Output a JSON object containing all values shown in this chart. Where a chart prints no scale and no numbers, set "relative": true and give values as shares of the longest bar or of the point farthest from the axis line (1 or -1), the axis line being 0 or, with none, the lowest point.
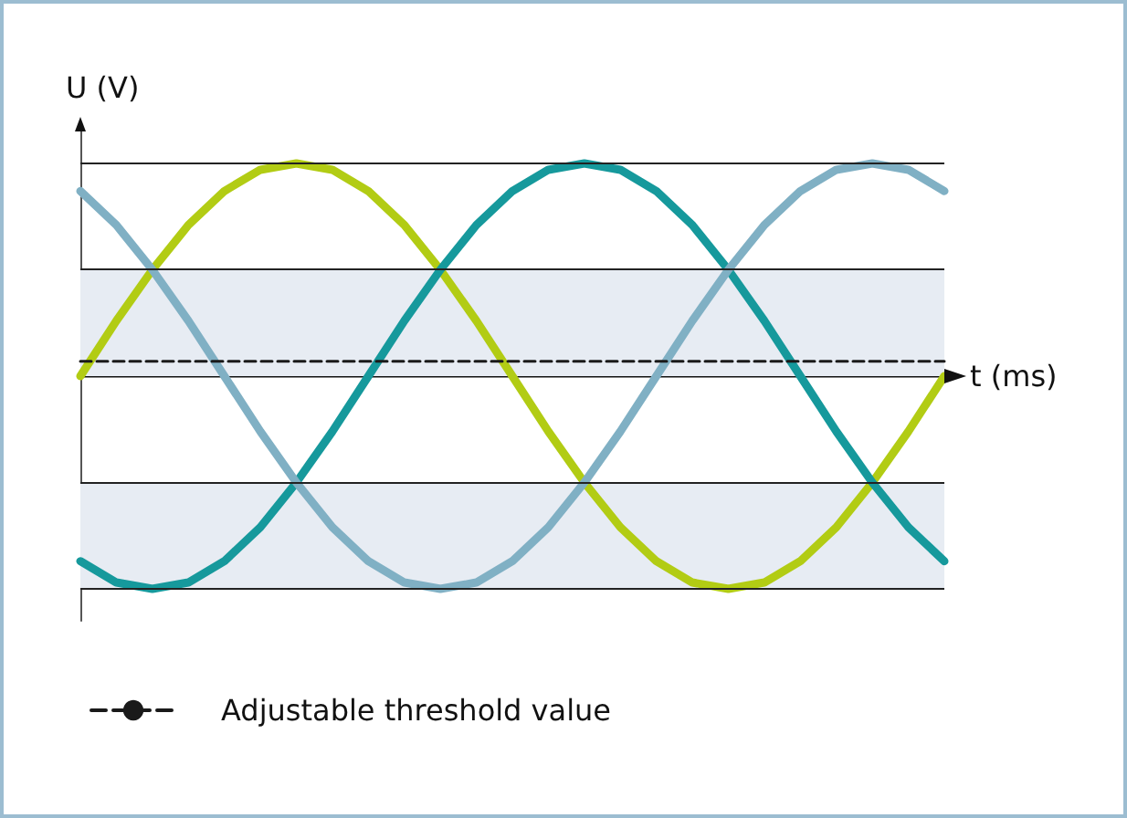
{
  "chart_data": {
    "type": "line",
    "relative": true,
    "xlabel": "t (ms)",
    "ylabel": "U (V)",
    "categories": [
      null,
      null,
      null,
      null,
      null,
      null,
      null,
      null,
      null,
      null,
      null,
      null,
      null,
      null,
      null,
      null,
      null,
      null,
      null,
      null,
      null,
      null,
      null,
      null,
      null
    ],
    "series": [
      {
        "color": "#b2cc14",
        "values": [
          0,
          0.26,
          0.5,
          0.71,
          0.87,
          0.97,
          1,
          0.97,
          0.87,
          0.71,
          0.5,
          0.26,
          0,
          -0.26,
          -0.5,
          -0.71,
          -0.87,
          -0.97,
          -1,
          -0.97,
          -0.87,
          -0.71,
          -0.5,
          -0.26,
          0
        ]
      },
      {
        "color": "#16999c",
        "values": [
          -0.87,
          -0.97,
          -1,
          -0.97,
          -0.87,
          -0.71,
          -0.5,
          -0.26,
          0,
          0.26,
          0.5,
          0.71,
          0.87,
          0.97,
          1,
          0.97,
          0.87,
          0.71,
          0.5,
          0.26,
          0,
          -0.26,
          -0.5,
          -0.71,
          -0.87
        ]
      },
      {
        "color": "#80b0c4",
        "values": [
          0.87,
          0.71,
          0.5,
          0.26,
          0,
          -0.26,
          -0.5,
          -0.71,
          -0.87,
          -0.97,
          -1,
          -0.97,
          -0.87,
          -0.71,
          -0.5,
          -0.26,
          0,
          0.26,
          0.5,
          0.71,
          0.87,
          0.97,
          1,
          0.97,
          0.87
        ]
      },
      {
        "name": "Adjustable threshold value",
        "color": "#1a1a1a",
        "line_style": "dashed",
        "values": [
          0.07,
          0.07,
          0.07,
          0.07,
          0.07,
          0.07,
          0.07,
          0.07,
          0.07,
          0.07,
          0.07,
          0.07,
          0.07,
          0.07,
          0.07,
          0.07,
          0.07,
          0.07,
          0.07,
          0.07,
          0.07,
          0.07,
          0.07,
          0.07,
          0.07
        ]
      }
    ],
    "bands": [
      {
        "axis": "y",
        "from": 0,
        "to": 0.5,
        "color": "#e7ecf3"
      },
      {
        "axis": "y",
        "from": -0.5,
        "to": -1,
        "color": "#e7ecf3"
      }
    ],
    "ref_lines": [
      {
        "axis": "y",
        "value": 1
      },
      {
        "axis": "y",
        "value": 0.5
      },
      {
        "axis": "y",
        "value": -0.5
      },
      {
        "axis": "y",
        "value": -1
      }
    ],
    "grid": false,
    "marker": "none",
    "legend": "bottom left"
  }
}
